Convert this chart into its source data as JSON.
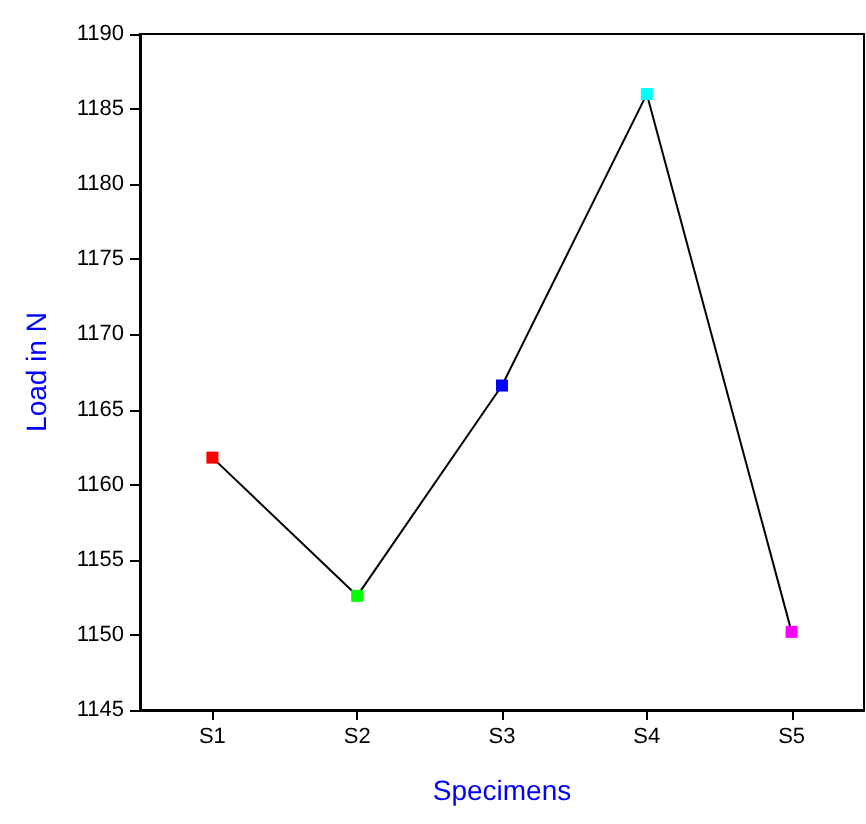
{
  "chart_data": {
    "type": "line",
    "xlabel": "Specimens",
    "ylabel": "Load in N",
    "categories": [
      "S1",
      "S2",
      "S3",
      "S4",
      "S5"
    ],
    "series": [
      {
        "color": "#000000",
        "colors": [
          "#ff0000",
          "#00ff00",
          "#0000ff",
          "#00ffff",
          "#ff00ff"
        ],
        "values": [
          1161.8,
          1152.6,
          1166.6,
          1186.0,
          1150.2
        ]
      }
    ],
    "ylim": [
      1145,
      1190
    ],
    "yticks": [
      1145,
      1150,
      1155,
      1160,
      1165,
      1170,
      1175,
      1180,
      1185,
      1190
    ],
    "marker": "square",
    "line_style": "solid",
    "grid": false
  }
}
